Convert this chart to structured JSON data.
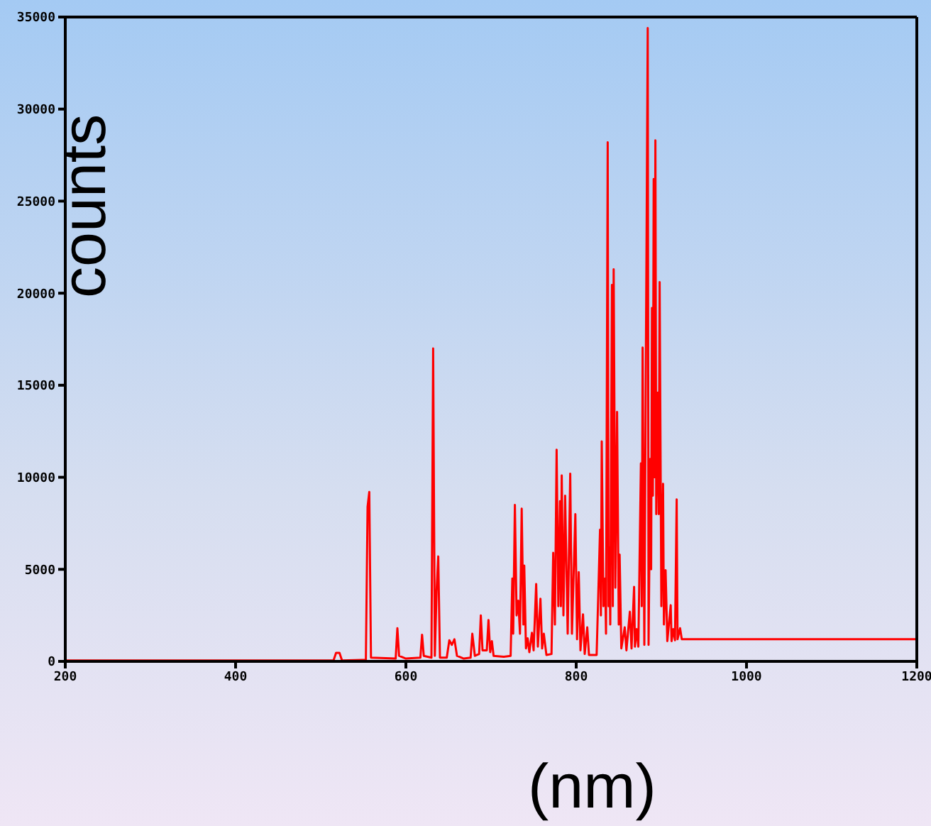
{
  "chart_data": {
    "type": "line",
    "xlabel": "(nm)",
    "ylabel": "counts",
    "xlim": [
      200,
      1200
    ],
    "xticks": [
      200,
      400,
      600,
      800,
      1000,
      1200
    ],
    "ylim": [
      0,
      35000
    ],
    "yticks": [
      0,
      5000,
      10000,
      15000,
      20000,
      25000,
      30000,
      35000
    ],
    "marker": "none",
    "line_style": "solid",
    "series": [
      {
        "color": "#ff0000",
        "x": [
          200,
          515,
          518,
          522,
          525,
          553,
          555,
          557,
          559,
          588,
          590,
          592,
          600,
          617,
          619,
          621,
          630,
          632,
          634,
          636,
          638,
          640,
          648,
          651,
          654,
          657,
          660,
          668,
          676,
          678,
          681,
          686,
          688,
          690,
          695,
          697,
          699,
          701,
          703,
          715,
          723,
          725,
          726,
          728,
          730,
          732,
          734,
          736,
          738,
          739,
          741,
          743,
          745,
          748,
          750,
          753,
          755,
          758,
          760,
          762,
          765,
          771,
          773,
          775,
          777,
          779,
          781,
          782,
          783,
          785,
          787,
          790,
          793,
          795,
          799,
          801,
          803,
          805,
          808,
          810,
          813,
          815,
          824,
          828,
          829,
          830,
          832,
          834,
          835,
          837,
          838,
          839,
          840,
          842,
          843,
          844,
          846,
          848,
          850,
          851,
          853,
          857,
          859,
          863,
          865,
          868,
          869,
          871,
          873,
          876,
          877,
          878,
          880,
          884,
          885,
          887,
          888,
          889,
          890,
          891,
          892,
          893,
          894,
          896,
          897,
          898,
          900,
          902,
          903,
          905,
          907,
          911,
          912,
          914,
          916,
          918,
          919,
          922,
          924,
          1200
        ],
        "values": [
          50,
          50,
          460,
          460,
          50,
          80,
          8400,
          9200,
          200,
          150,
          1800,
          300,
          150,
          200,
          1450,
          300,
          200,
          17000,
          300,
          3800,
          5700,
          200,
          200,
          1150,
          900,
          1200,
          300,
          150,
          200,
          1500,
          300,
          400,
          2500,
          600,
          600,
          2250,
          500,
          1100,
          300,
          250,
          300,
          4500,
          1500,
          8500,
          2500,
          3300,
          1500,
          8300,
          2000,
          5200,
          700,
          1250,
          500,
          1550,
          600,
          4200,
          800,
          3400,
          700,
          1500,
          350,
          400,
          5900,
          2000,
          11500,
          3000,
          8700,
          3000,
          10100,
          2500,
          9000,
          1500,
          10200,
          1500,
          8000,
          1200,
          4850,
          600,
          2550,
          400,
          1850,
          350,
          350,
          7150,
          2500,
          11950,
          3000,
          4500,
          1500,
          28200,
          3000,
          6200,
          2000,
          20450,
          3000,
          21300,
          4000,
          13550,
          2000,
          5800,
          700,
          1850,
          600,
          2700,
          700,
          4050,
          800,
          1750,
          800,
          10750,
          3000,
          17050,
          900,
          34400,
          900,
          11000,
          5000,
          19200,
          9000,
          26200,
          10000,
          28300,
          8000,
          14600,
          8000,
          20600,
          3000,
          9650,
          2000,
          4950,
          1100,
          3050,
          1100,
          1750,
          1150,
          8800,
          1200,
          1800,
          1200,
          1200
        ]
      }
    ]
  }
}
